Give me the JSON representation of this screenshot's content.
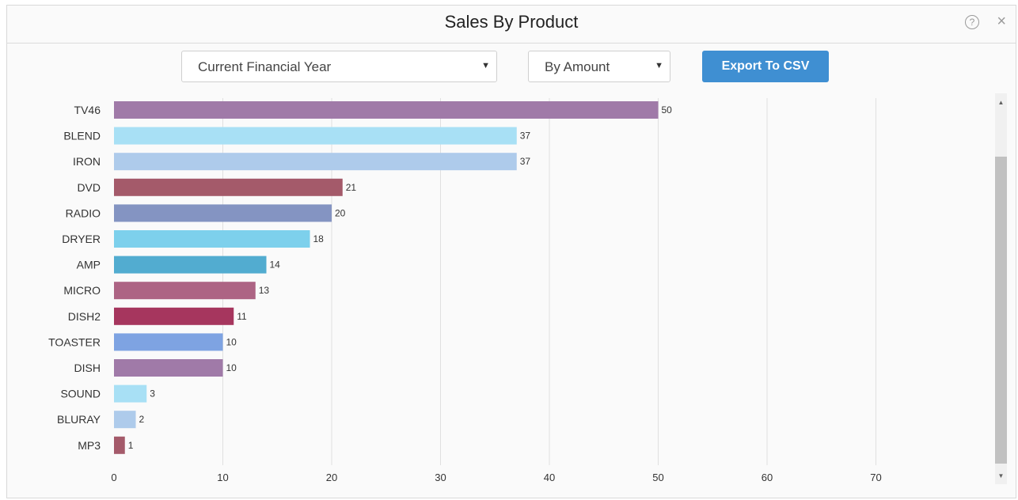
{
  "header": {
    "title": "Sales By Product",
    "help_glyph": "?",
    "close_glyph": "×"
  },
  "controls": {
    "period_select": "Current Financial Year",
    "measure_select": "By Amount",
    "caret": "▼",
    "export_label": "Export To CSV"
  },
  "scrollbar": {
    "up_glyph": "▲",
    "down_glyph": "▼"
  },
  "colors": {
    "grid": "#e0e0e0",
    "tick_text": "#333333",
    "button": "#3f8fd2"
  },
  "chart_data": {
    "type": "bar",
    "orientation": "horizontal",
    "title": "",
    "xlabel": "",
    "ylabel": "",
    "categories": [
      "TV46",
      "BLEND",
      "IRON",
      "DVD",
      "RADIO",
      "DRYER",
      "AMP",
      "MICRO",
      "DISH2",
      "TOASTER",
      "DISH",
      "SOUND",
      "BLURAY",
      "MP3"
    ],
    "values": [
      50,
      37,
      37,
      21,
      20,
      18,
      14,
      13,
      11,
      10,
      10,
      3,
      2,
      1
    ],
    "colors": [
      "#a07aa8",
      "#a8e0f5",
      "#aecbeb",
      "#a45a6a",
      "#8494c2",
      "#7dd0ec",
      "#52acd0",
      "#ad6484",
      "#a6365e",
      "#7ea3e2",
      "#a07aa8",
      "#a8e0f5",
      "#aecbeb",
      "#a45a6a"
    ],
    "xlim": [
      0,
      70
    ],
    "xticks": [
      0,
      10,
      20,
      30,
      40,
      50,
      60,
      70
    ],
    "grid": true,
    "legend": "none"
  }
}
